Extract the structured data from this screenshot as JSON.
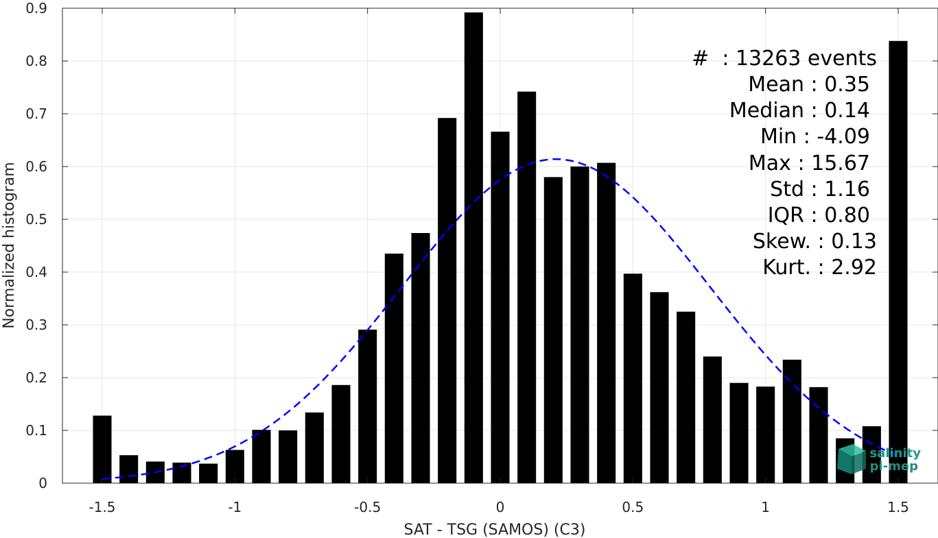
{
  "chart_data": {
    "type": "bar",
    "xlabel": "SAT - TSG (SAMOS) (C3)",
    "ylabel": "Normalized histogram",
    "xlim": [
      -1.65,
      1.65
    ],
    "ylim": [
      0,
      0.9
    ],
    "xticks": [
      -1.5,
      -1,
      -0.5,
      0,
      0.5,
      1,
      1.5
    ],
    "xtick_labels": [
      "-1.5",
      "-1",
      "-0.5",
      "0",
      "0.5",
      "1",
      "1.5"
    ],
    "yticks": [
      0,
      0.1,
      0.2,
      0.3,
      0.4,
      0.5,
      0.6,
      0.7,
      0.8,
      0.9
    ],
    "ytick_labels": [
      "0",
      "0.1",
      "0.2",
      "0.3",
      "0.4",
      "0.5",
      "0.6",
      "0.7",
      "0.8",
      "0.9"
    ],
    "grid": true,
    "bar_color": "#000000",
    "bins": [
      {
        "x": -1.5,
        "value": 0.128
      },
      {
        "x": -1.4,
        "value": 0.053
      },
      {
        "x": -1.3,
        "value": 0.041
      },
      {
        "x": -1.2,
        "value": 0.039
      },
      {
        "x": -1.1,
        "value": 0.037
      },
      {
        "x": -1.0,
        "value": 0.063
      },
      {
        "x": -0.9,
        "value": 0.101
      },
      {
        "x": -0.8,
        "value": 0.1
      },
      {
        "x": -0.7,
        "value": 0.134
      },
      {
        "x": -0.6,
        "value": 0.186
      },
      {
        "x": -0.5,
        "value": 0.291
      },
      {
        "x": -0.4,
        "value": 0.435
      },
      {
        "x": -0.3,
        "value": 0.474
      },
      {
        "x": -0.2,
        "value": 0.692
      },
      {
        "x": -0.1,
        "value": 0.892
      },
      {
        "x": 0.0,
        "value": 0.666
      },
      {
        "x": 0.1,
        "value": 0.742
      },
      {
        "x": 0.2,
        "value": 0.58
      },
      {
        "x": 0.3,
        "value": 0.6
      },
      {
        "x": 0.4,
        "value": 0.607
      },
      {
        "x": 0.5,
        "value": 0.397
      },
      {
        "x": 0.6,
        "value": 0.362
      },
      {
        "x": 0.7,
        "value": 0.325
      },
      {
        "x": 0.8,
        "value": 0.24
      },
      {
        "x": 0.9,
        "value": 0.19
      },
      {
        "x": 1.0,
        "value": 0.183
      },
      {
        "x": 1.1,
        "value": 0.234
      },
      {
        "x": 1.2,
        "value": 0.182
      },
      {
        "x": 1.3,
        "value": 0.085
      },
      {
        "x": 1.4,
        "value": 0.108
      },
      {
        "x": 1.5,
        "value": 0.838
      }
    ],
    "fit_curve": {
      "style": "dashed",
      "color": "#0000ff",
      "mean": 0.21,
      "std": 0.58,
      "peak": 0.614,
      "x_range": [
        -1.5,
        1.5
      ]
    },
    "stats": {
      "events": "#  : 13263 events",
      "mean": "Mean : 0.35",
      "median": "Median : 0.14",
      "min": "Min : -4.09",
      "max": "Max : 15.67",
      "std": "Std : 1.16",
      "iqr": "IQR : 0.80",
      "skew": "Skew. : 0.13",
      "kurt": "Kurt. : 2.92"
    }
  },
  "logo": {
    "line1": "salinity",
    "line2": "pi-mep",
    "color": "#1a9a8a"
  }
}
